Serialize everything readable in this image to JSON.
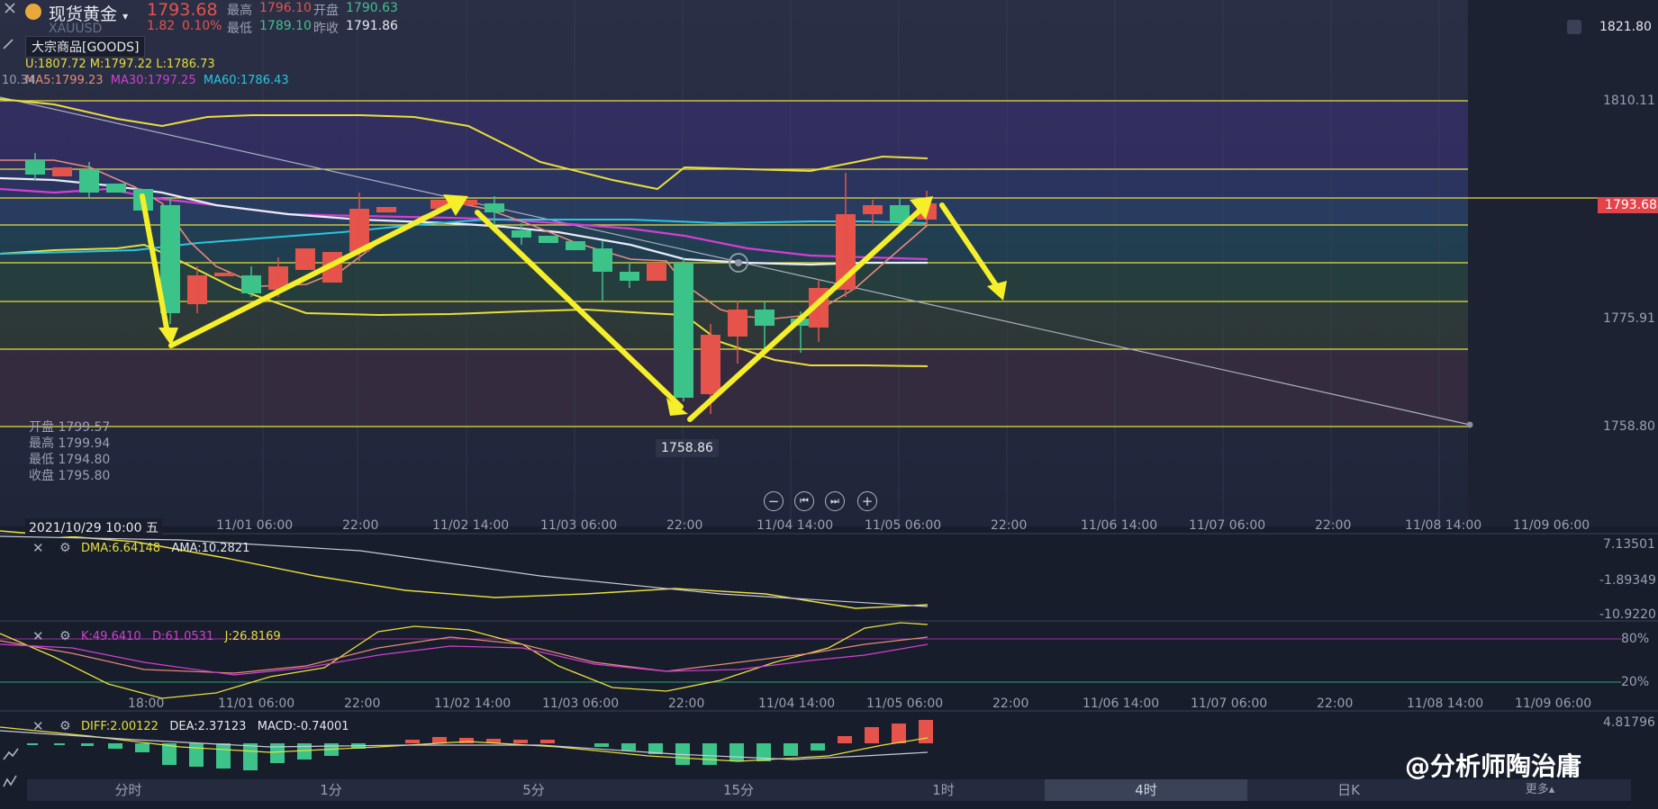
{
  "header": {
    "symbol_name": "现货黄金",
    "symbol_code": "XAUUSD",
    "last_price": "1793.68",
    "change": "1.82",
    "change_pct": "0.10%",
    "high_label": "最高",
    "high": "1796.10",
    "open_label": "开盘",
    "open": "1790.63",
    "low_label": "最低",
    "low": "1789.10",
    "prev_close_label": "昨收",
    "prev_close": "1791.86",
    "category": "大宗商品[GOODS]",
    "top_right_price": "1821.80"
  },
  "indicators": {
    "boll": "U:1807.72  M:1797.22  L:1786.73",
    "ma5": "MA5:1799.23",
    "ma30": "MA30:1797.25",
    "ma60": "MA60:1786.43"
  },
  "left_axis_top": "10.34",
  "price_axis": [
    "1810.11",
    "1775.91",
    "1758.80"
  ],
  "current_price_tag": "1793.68",
  "low_marker": "1758.86",
  "cursor_info": {
    "open": "开盘 1799.57",
    "high": "最高 1799.94",
    "low": "最低 1794.80",
    "close": "收盘 1795.80"
  },
  "date_badge": "2021/10/29 10:00 五",
  "time_axis_main": [
    "11/01 06:00",
    "22:00",
    "11/02 14:00",
    "11/03 06:00",
    "22:00",
    "11/04 14:00",
    "11/05 06:00",
    "22:00",
    "11/06 14:00",
    "11/07 06:00",
    "22:00",
    "11/08 14:00",
    "11/09 06:00"
  ],
  "time_axis_sub": [
    "18:00",
    "11/01 06:00",
    "22:00",
    "11/02 14:00",
    "11/03 06:00",
    "22:00",
    "11/04 14:00",
    "11/05 06:00",
    "22:00",
    "11/06 14:00",
    "11/07 06:00",
    "22:00",
    "11/08 14:00",
    "11/09 06:00"
  ],
  "dma": {
    "dma": "DMA:6.64148",
    "ama": "AMA:10.2821",
    "axis": [
      "7.13501",
      "-1.89349",
      "-10.9220"
    ]
  },
  "kdj": {
    "k": "K:49.6410",
    "d": "D:61.0531",
    "j": "J:26.8169",
    "axis": [
      "80%",
      "20%"
    ]
  },
  "macd": {
    "diff": "DIFF:2.00122",
    "dea": "DEA:2.37123",
    "macd": "MACD:-0.74001",
    "axis": [
      "4.81796"
    ]
  },
  "nav": {
    "zoom_out": "−",
    "first": "⏮",
    "last": "⏭",
    "zoom_in": "+"
  },
  "timeframes": [
    "分时",
    "1分",
    "5分",
    "15分",
    "1时",
    "4时",
    "日K",
    "更多▴"
  ],
  "active_timeframe": "4时",
  "watermark": "@分析师陶治庸",
  "colors": {
    "up": "#e5534b",
    "down": "#3cc38a",
    "yellow": "#f5e93a",
    "magenta": "#d43fd2",
    "cyan": "#29c6e0"
  }
}
